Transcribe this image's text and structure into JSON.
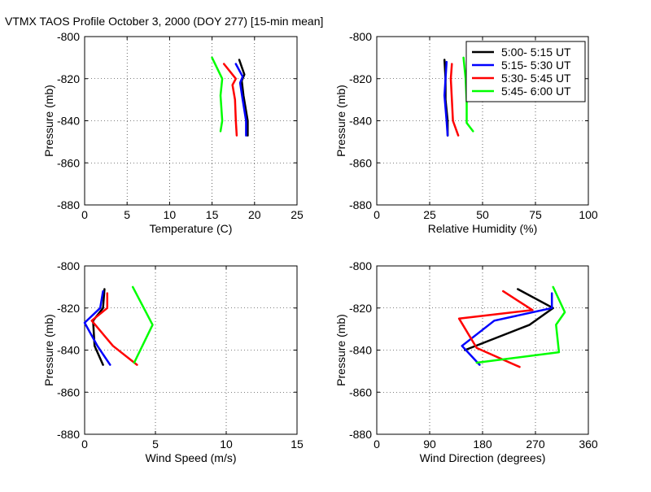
{
  "figure_title": "VTMX TAOS Profile   October 3, 2000 (DOY 277) [15-min mean]",
  "chart_data": [
    {
      "type": "line",
      "xlabel": "Temperature (C)",
      "ylabel": "Pressure (mb)",
      "xlim": [
        0,
        25
      ],
      "ylim": [
        -880,
        -800
      ],
      "xticks": [
        0,
        5,
        10,
        15,
        20,
        25
      ],
      "yticks": [
        -880,
        -860,
        -840,
        -820,
        -800
      ],
      "grid": true,
      "series": [
        {
          "name": "5:00- 5:15 UT",
          "color": "#000000",
          "points": [
            [
              18.2,
              -811
            ],
            [
              18.8,
              -818
            ],
            [
              18.5,
              -821
            ],
            [
              18.7,
              -828
            ],
            [
              19.2,
              -840
            ],
            [
              19.2,
              -847
            ]
          ]
        },
        {
          "name": "5:15- 5:30 UT",
          "color": "#0000ff",
          "points": [
            [
              17.8,
              -813
            ],
            [
              18.6,
              -819
            ],
            [
              18.3,
              -822
            ],
            [
              18.6,
              -830
            ],
            [
              19.0,
              -840
            ],
            [
              19.0,
              -847
            ]
          ]
        },
        {
          "name": "5:30- 5:45 UT",
          "color": "#ff0000",
          "points": [
            [
              16.4,
              -813
            ],
            [
              17.8,
              -820
            ],
            [
              17.4,
              -823
            ],
            [
              17.7,
              -830
            ],
            [
              17.8,
              -840
            ],
            [
              17.9,
              -847
            ]
          ]
        },
        {
          "name": "5:45- 6:00 UT",
          "color": "#00ff00",
          "points": [
            [
              15.0,
              -810
            ],
            [
              16.2,
              -820
            ],
            [
              16.0,
              -828
            ],
            [
              16.2,
              -840
            ],
            [
              16.0,
              -845
            ]
          ]
        }
      ]
    },
    {
      "type": "line",
      "xlabel": "Relative Humidity (%)",
      "ylabel": "Pressure (mb)",
      "xlim": [
        0,
        100
      ],
      "ylim": [
        -880,
        -800
      ],
      "xticks": [
        0,
        25,
        50,
        75,
        100
      ],
      "yticks": [
        -880,
        -860,
        -840,
        -820,
        -800
      ],
      "grid": true,
      "series": [
        {
          "name": "5:00- 5:15 UT",
          "color": "#000000",
          "points": [
            [
              32.0,
              -811
            ],
            [
              32.5,
              -820
            ],
            [
              32.5,
              -830
            ],
            [
              33.5,
              -840
            ],
            [
              33.5,
              -847
            ]
          ]
        },
        {
          "name": "5:15- 5:30 UT",
          "color": "#0000ff",
          "points": [
            [
              33.0,
              -812
            ],
            [
              32.5,
              -820
            ],
            [
              32.0,
              -828
            ],
            [
              33.0,
              -840
            ],
            [
              33.5,
              -847
            ]
          ]
        },
        {
          "name": "5:30- 5:45 UT",
          "color": "#ff0000",
          "points": [
            [
              35.5,
              -813
            ],
            [
              35.0,
              -820
            ],
            [
              35.5,
              -830
            ],
            [
              36.0,
              -840
            ],
            [
              38.5,
              -847
            ]
          ]
        },
        {
          "name": "5:45- 6:00 UT",
          "color": "#00ff00",
          "points": [
            [
              41.0,
              -810
            ],
            [
              42.0,
              -820
            ],
            [
              42.5,
              -831
            ],
            [
              42.5,
              -841
            ],
            [
              45.5,
              -845
            ]
          ]
        }
      ]
    },
    {
      "type": "line",
      "xlabel": "Wind Speed (m/s)",
      "ylabel": "Pressure (mb)",
      "xlim": [
        0,
        15
      ],
      "ylim": [
        -880,
        -800
      ],
      "xticks": [
        0,
        5,
        10,
        15
      ],
      "yticks": [
        -880,
        -860,
        -840,
        -820,
        -800
      ],
      "grid": true,
      "series": [
        {
          "name": "5:00- 5:15 UT",
          "color": "#000000",
          "points": [
            [
              1.4,
              -811
            ],
            [
              1.3,
              -820
            ],
            [
              0.6,
              -826
            ],
            [
              0.7,
              -838
            ],
            [
              1.3,
              -847
            ]
          ]
        },
        {
          "name": "5:15- 5:30 UT",
          "color": "#0000ff",
          "points": [
            [
              1.3,
              -812
            ],
            [
              1.1,
              -820
            ],
            [
              0.0,
              -827
            ],
            [
              0.9,
              -838
            ],
            [
              1.8,
              -847
            ]
          ]
        },
        {
          "name": "5:30- 5:45 UT",
          "color": "#ff0000",
          "points": [
            [
              1.6,
              -813
            ],
            [
              1.6,
              -820
            ],
            [
              0.5,
              -826
            ],
            [
              2.0,
              -838
            ],
            [
              3.7,
              -847
            ]
          ]
        },
        {
          "name": "5:45- 6:00 UT",
          "color": "#00ff00",
          "points": [
            [
              3.4,
              -810
            ],
            [
              4.8,
              -828
            ],
            [
              3.5,
              -846
            ]
          ]
        }
      ]
    },
    {
      "type": "line",
      "xlabel": "Wind Direction (degrees)",
      "ylabel": "Pressure (mb)",
      "xlim": [
        0,
        360
      ],
      "ylim": [
        -880,
        -800
      ],
      "xticks": [
        0,
        90,
        180,
        270,
        360
      ],
      "yticks": [
        -880,
        -860,
        -840,
        -820,
        -800
      ],
      "grid": true,
      "series": [
        {
          "name": "5:00- 5:15 UT",
          "color": "#000000",
          "points": [
            [
              240,
              -811
            ],
            [
              300,
              -820
            ],
            [
              260,
              -828
            ],
            [
              150,
              -840
            ]
          ]
        },
        {
          "name": "5:15- 5:30 UT",
          "color": "#0000ff",
          "points": [
            [
              298,
              -813
            ],
            [
              298,
              -820
            ],
            [
              200,
              -826
            ],
            [
              145,
              -838
            ],
            [
              175,
              -847
            ]
          ]
        },
        {
          "name": "5:30- 5:45 UT",
          "color": "#ff0000",
          "points": [
            [
              215,
              -812
            ],
            [
              265,
              -821
            ],
            [
              140,
              -825
            ],
            [
              170,
              -839
            ],
            [
              243,
              -848
            ]
          ]
        },
        {
          "name": "5:45- 6:00 UT",
          "color": "#00ff00",
          "points": [
            [
              300,
              -810
            ],
            [
              320,
              -822
            ],
            [
              305,
              -828
            ],
            [
              310,
              -841
            ],
            [
              170,
              -846
            ]
          ]
        }
      ]
    }
  ],
  "legend": {
    "placement": "top-right of second panel",
    "entries": [
      {
        "label": "5:00- 5:15 UT",
        "color": "#000000"
      },
      {
        "label": "5:15- 5:30 UT",
        "color": "#0000ff"
      },
      {
        "label": "5:30- 5:45 UT",
        "color": "#ff0000"
      },
      {
        "label": "5:45- 6:00 UT",
        "color": "#00ff00"
      }
    ]
  }
}
